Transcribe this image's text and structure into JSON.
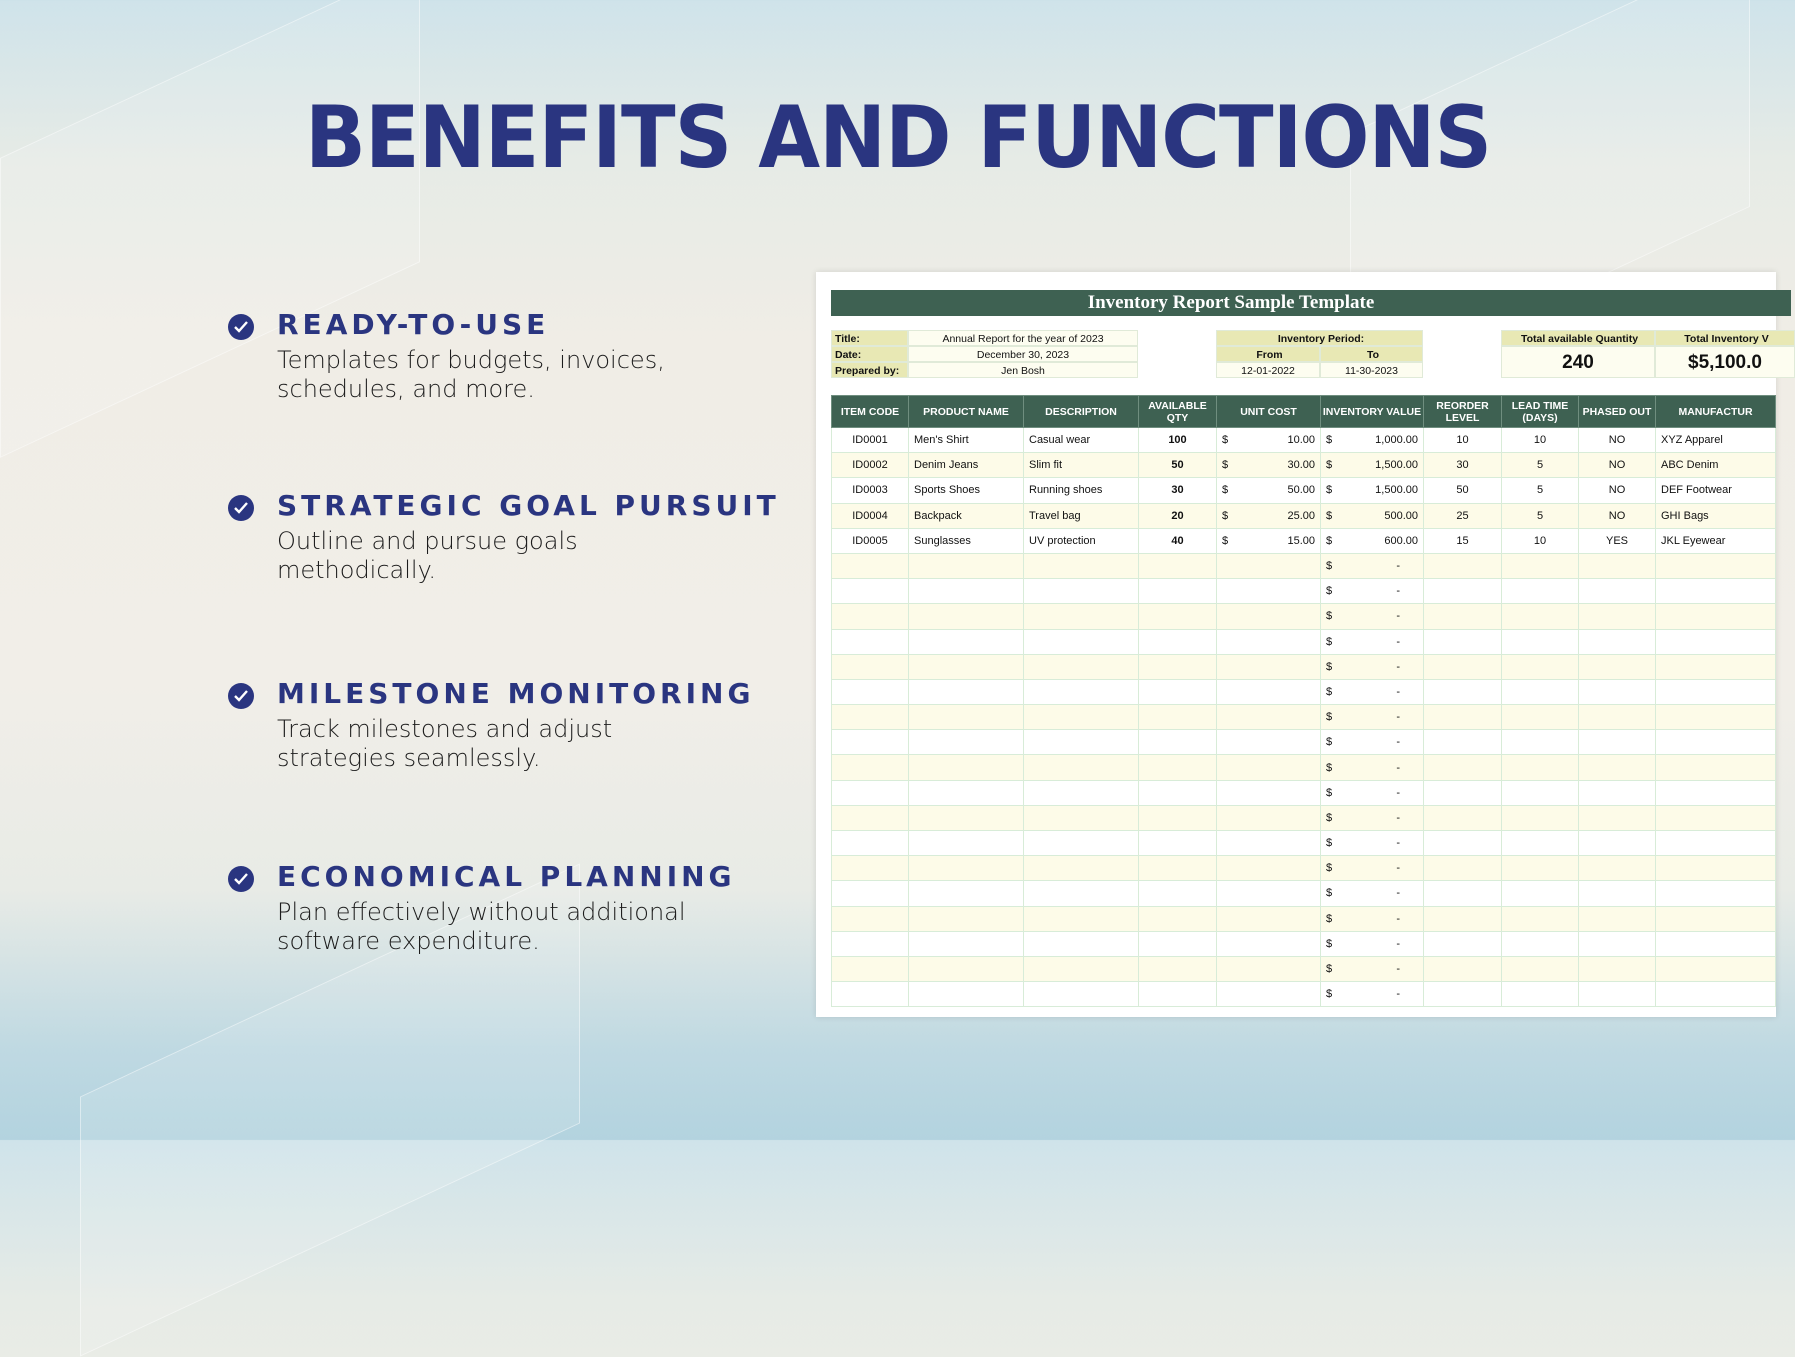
{
  "heading": "BENEFITS AND FUNCTIONS",
  "accent": "#2a3580",
  "benefits": [
    {
      "title": "READY-TO-USE",
      "text": "Templates for budgets, invoices, schedules, and more.",
      "icon": "check-circle-icon"
    },
    {
      "title": "STRATEGIC GOAL PURSUIT",
      "text": "Outline and pursue goals methodically.",
      "icon": "check-circle-icon"
    },
    {
      "title": "MILESTONE MONITORING",
      "text": "Track milestones and adjust strategies seamlessly.",
      "icon": "check-circle-icon"
    },
    {
      "title": "ECONOMICAL PLANNING",
      "text": "Plan effectively without additional software expenditure.",
      "icon": "check-circle-icon"
    }
  ],
  "sheet": {
    "title": "Inventory Report Sample Template",
    "header_color": "#3e6152",
    "info": {
      "title_label": "Title:",
      "title_value": "Annual Report for the year of 2023",
      "date_label": "Date:",
      "date_value": "December 30, 2023",
      "prepared_label": "Prepared by:",
      "prepared_value": "Jen Bosh"
    },
    "period": {
      "label": "Inventory Period:",
      "from_label": "From",
      "to_label": "To",
      "from": "12-01-2022",
      "to": "11-30-2023"
    },
    "totals": {
      "qty_label": "Total available Quantity",
      "qty": "240",
      "value_label": "Total Inventory V",
      "value": "$5,100.0"
    },
    "columns": [
      "ITEM CODE",
      "PRODUCT NAME",
      "DESCRIPTION",
      "AVAILABLE QTY",
      "UNIT COST",
      "INVENTORY VALUE",
      "REORDER LEVEL",
      "LEAD TIME (DAYS)",
      "PHASED OUT",
      "MANUFACTUR"
    ],
    "currency": "$",
    "rows": [
      [
        "ID0001",
        "Men's Shirt",
        "Casual wear",
        "100",
        "10.00",
        "1,000.00",
        "10",
        "10",
        "NO",
        "XYZ Apparel"
      ],
      [
        "ID0002",
        "Denim Jeans",
        "Slim fit",
        "50",
        "30.00",
        "1,500.00",
        "30",
        "5",
        "NO",
        "ABC Denim"
      ],
      [
        "ID0003",
        "Sports Shoes",
        "Running shoes",
        "30",
        "50.00",
        "1,500.00",
        "50",
        "5",
        "NO",
        "DEF Footwear"
      ],
      [
        "ID0004",
        "Backpack",
        "Travel bag",
        "20",
        "25.00",
        "500.00",
        "25",
        "5",
        "NO",
        "GHI Bags"
      ],
      [
        "ID0005",
        "Sunglasses",
        "UV protection",
        "40",
        "15.00",
        "600.00",
        "15",
        "10",
        "YES",
        "JKL Eyewear"
      ],
      [
        "",
        "",
        "",
        "",
        "",
        "-",
        "",
        "",
        "",
        ""
      ],
      [
        "",
        "",
        "",
        "",
        "",
        "-",
        "",
        "",
        "",
        ""
      ],
      [
        "",
        "",
        "",
        "",
        "",
        "-",
        "",
        "",
        "",
        ""
      ],
      [
        "",
        "",
        "",
        "",
        "",
        "-",
        "",
        "",
        "",
        ""
      ],
      [
        "",
        "",
        "",
        "",
        "",
        "-",
        "",
        "",
        "",
        ""
      ],
      [
        "",
        "",
        "",
        "",
        "",
        "-",
        "",
        "",
        "",
        ""
      ],
      [
        "",
        "",
        "",
        "",
        "",
        "-",
        "",
        "",
        "",
        ""
      ],
      [
        "",
        "",
        "",
        "",
        "",
        "-",
        "",
        "",
        "",
        ""
      ],
      [
        "",
        "",
        "",
        "",
        "",
        "-",
        "",
        "",
        "",
        ""
      ],
      [
        "",
        "",
        "",
        "",
        "",
        "-",
        "",
        "",
        "",
        ""
      ],
      [
        "",
        "",
        "",
        "",
        "",
        "-",
        "",
        "",
        "",
        ""
      ],
      [
        "",
        "",
        "",
        "",
        "",
        "-",
        "",
        "",
        "",
        ""
      ],
      [
        "",
        "",
        "",
        "",
        "",
        "-",
        "",
        "",
        "",
        ""
      ],
      [
        "",
        "",
        "",
        "",
        "",
        "-",
        "",
        "",
        "",
        ""
      ],
      [
        "",
        "",
        "",
        "",
        "",
        "-",
        "",
        "",
        "",
        ""
      ],
      [
        "",
        "",
        "",
        "",
        "",
        "-",
        "",
        "",
        "",
        ""
      ],
      [
        "",
        "",
        "",
        "",
        "",
        "-",
        "",
        "",
        "",
        ""
      ],
      [
        "",
        "",
        "",
        "",
        "",
        "-",
        "",
        "",
        "",
        ""
      ]
    ]
  }
}
